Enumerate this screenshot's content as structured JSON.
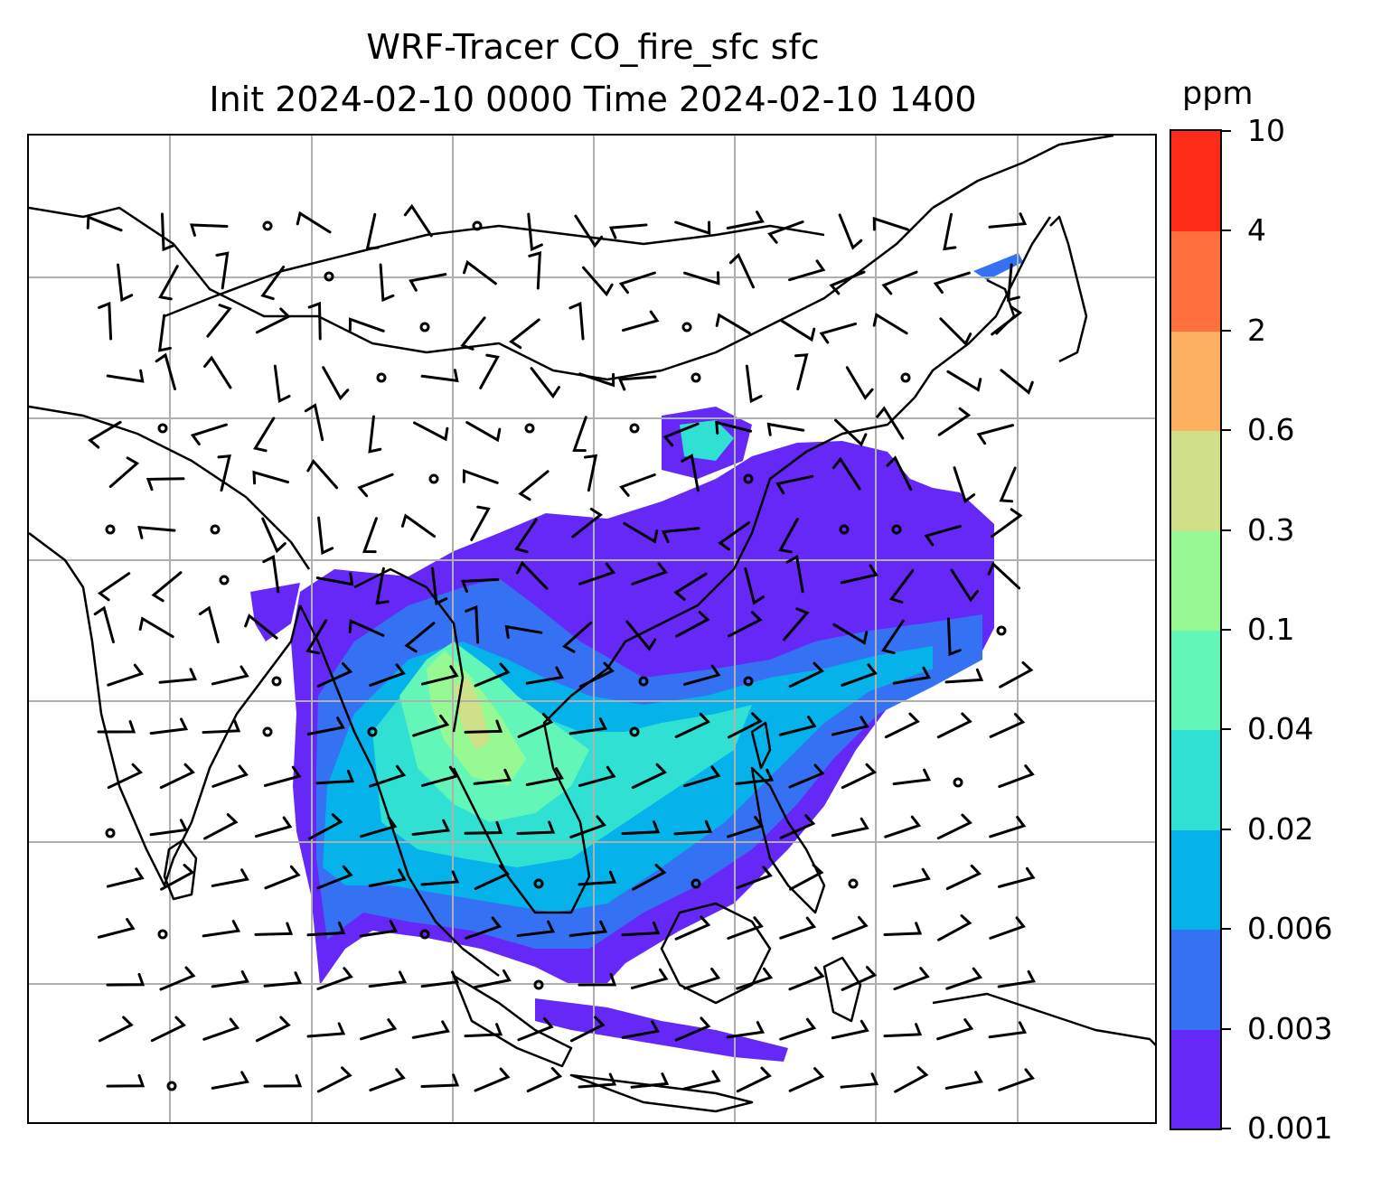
{
  "title": {
    "line1": "WRF-Tracer CO_fire_sfc sfc",
    "line2": "Init 2024-02-10 0000 Time 2024-02-10 1400"
  },
  "colorbar": {
    "units": "ppm",
    "levels": [
      "0.001",
      "0.003",
      "0.006",
      "0.02",
      "0.04",
      "0.1",
      "0.3",
      "0.6",
      "2",
      "4",
      "10"
    ],
    "colors": [
      "#6528f7",
      "#3472f3",
      "#05b2ea",
      "#2fe0d3",
      "#62f7b9",
      "#97f994",
      "#cfe088",
      "#fdb160",
      "#ff703c",
      "#ff2a18"
    ]
  },
  "map": {
    "field": "CO_fire_sfc",
    "level": "sfc",
    "gridlines": true,
    "overlay": "wind barbs",
    "coastline_color": "#000000",
    "gridline_color": "#b0b0b0"
  }
}
